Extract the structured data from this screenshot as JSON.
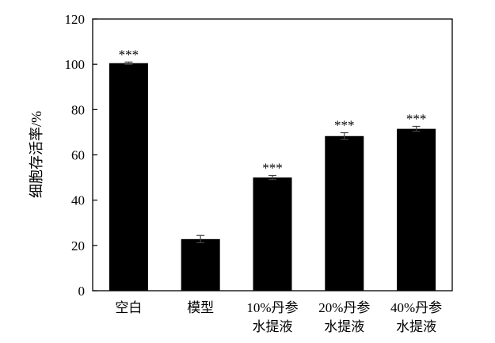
{
  "chart_data": {
    "type": "bar",
    "categories": [
      [
        "空白"
      ],
      [
        "模型"
      ],
      [
        "10%丹参",
        "水提液"
      ],
      [
        "20%丹参",
        "水提液"
      ],
      [
        "40%丹参",
        "水提液"
      ]
    ],
    "values": [
      100.5,
      22.8,
      50.0,
      68.3,
      71.5
    ],
    "errors": [
      0.5,
      1.6,
      0.9,
      1.5,
      1.1
    ],
    "significance": [
      "***",
      "",
      "***",
      "***",
      "***"
    ],
    "ylabel": "细胞存活率/%",
    "xlabel": "",
    "title": "",
    "ylim": [
      0,
      120
    ],
    "yticks": [
      0,
      20,
      40,
      60,
      80,
      100,
      120
    ],
    "bar_color": "#000000",
    "grid": false,
    "legend": "none"
  }
}
